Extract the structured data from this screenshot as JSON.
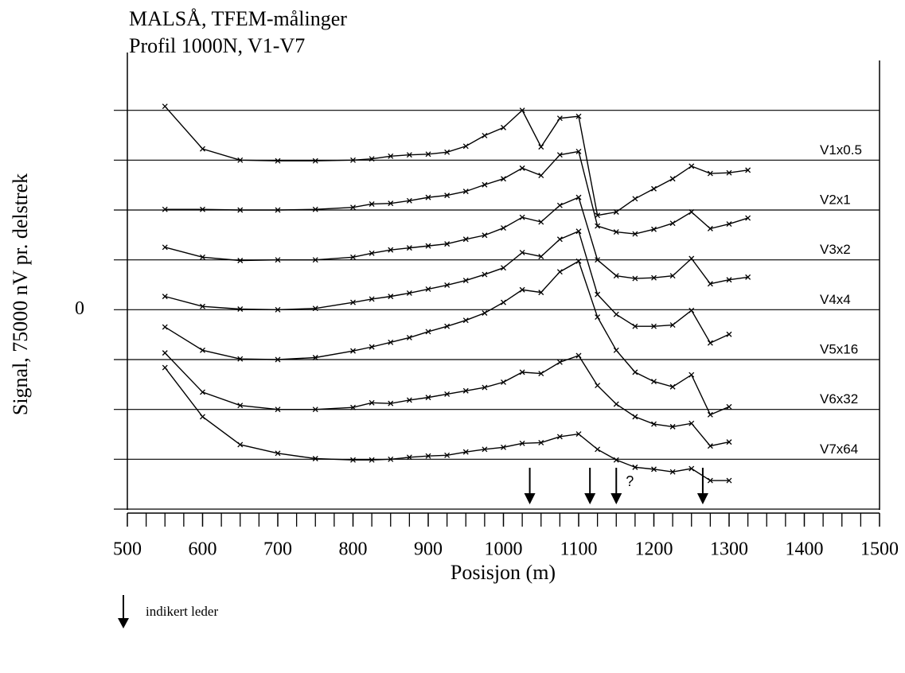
{
  "chart_data": {
    "type": "line",
    "title": "MALSÅ, TFEM-målinger",
    "subtitle": "Profil 1000N, V1-V7",
    "y_label": "Signal, 75000 nV pr. delstrek",
    "x_label": "Posisjon (m)",
    "xlim": [
      500,
      1500
    ],
    "xticks": [
      500,
      600,
      700,
      800,
      900,
      1000,
      1100,
      1200,
      1300,
      1400,
      1500
    ],
    "minor_tick_interval": 25,
    "ylim": [
      -300000,
      375000
    ],
    "yticks": [
      0
    ],
    "grid_values": [
      -300000,
      -225000,
      -150000,
      -75000,
      0,
      75000,
      150000,
      225000,
      300000
    ],
    "grid": true,
    "x": [
      550,
      600,
      650,
      700,
      750,
      800,
      825,
      850,
      875,
      900,
      925,
      950,
      975,
      1000,
      1025,
      1050,
      1075,
      1100,
      1125,
      1150,
      1175,
      1200,
      1225,
      1250,
      1275,
      1300,
      1325
    ],
    "series": [
      {
        "name": "V1x0.5",
        "color": "#000000",
        "values": [
          306000,
          242000,
          225000,
          224000,
          224000,
          225000,
          227000,
          231000,
          233000,
          234000,
          237000,
          246000,
          262000,
          274000,
          300000,
          245000,
          288000,
          291000,
          142000,
          147000,
          167000,
          182000,
          197000,
          216000,
          205000,
          206000,
          210000
        ]
      },
      {
        "name": "V2x1",
        "color": "#000000",
        "values": [
          151000,
          151000,
          150000,
          150000,
          151000,
          154000,
          159000,
          160000,
          164000,
          169000,
          172000,
          178000,
          188000,
          197000,
          213000,
          202000,
          233000,
          238000,
          126000,
          117000,
          114000,
          121000,
          130000,
          147000,
          122000,
          129000,
          138000
        ]
      },
      {
        "name": "V3x2",
        "color": "#000000",
        "values": [
          94000,
          79000,
          74000,
          75000,
          75000,
          79000,
          85000,
          90000,
          93000,
          96000,
          99000,
          106000,
          112000,
          123000,
          139000,
          132000,
          157000,
          169000,
          75000,
          51000,
          47000,
          48000,
          51000,
          77000,
          39000,
          45000,
          49000
        ]
      },
      {
        "name": "V4x4",
        "color": "#000000",
        "values": [
          20000,
          5000,
          1000,
          0,
          2000,
          11000,
          16000,
          20000,
          25000,
          31000,
          37000,
          44000,
          53000,
          63000,
          86000,
          80000,
          106000,
          118000,
          23000,
          -7000,
          -25000,
          -25000,
          -23000,
          -1000,
          -50000,
          -37000,
          null
        ]
      },
      {
        "name": "V5x16",
        "color": "#000000",
        "values": [
          -26000,
          -61000,
          -74000,
          -75000,
          -72000,
          -62000,
          -56000,
          -49000,
          -42000,
          -33000,
          -25000,
          -16000,
          -5000,
          11000,
          30000,
          26000,
          57000,
          73000,
          -11000,
          -61000,
          -94000,
          -108000,
          -116000,
          -98000,
          -158000,
          -146000,
          null
        ]
      },
      {
        "name": "V6x32",
        "color": "#000000",
        "values": [
          -65000,
          -124000,
          -144000,
          -150000,
          -150000,
          -147000,
          -140000,
          -141000,
          -136000,
          -132000,
          -127000,
          -122000,
          -117000,
          -109000,
          -94000,
          -96000,
          -79000,
          -69000,
          -114000,
          -142000,
          -161000,
          -172000,
          -176000,
          -171000,
          -205000,
          -199000,
          null
        ]
      },
      {
        "name": "V7x64",
        "color": "#000000",
        "values": [
          -87000,
          -161000,
          -203000,
          -216000,
          -224000,
          -226000,
          -226000,
          -225000,
          -222000,
          -220000,
          -219000,
          -214000,
          -210000,
          -207000,
          -201000,
          -200000,
          -191000,
          -187000,
          -210000,
          -226000,
          -237000,
          -240000,
          -244000,
          -239000,
          -257000,
          -257000,
          null
        ]
      }
    ],
    "conductor_arrows": [
      1035,
      1115,
      1150,
      1265
    ],
    "uncertain_mark": "?",
    "legend_text": "indikert leder"
  }
}
